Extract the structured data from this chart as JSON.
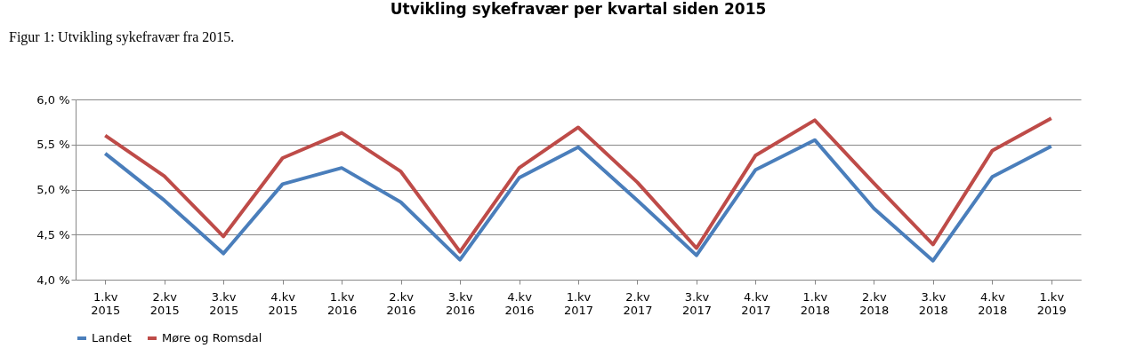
{
  "chart_data": {
    "type": "line",
    "title": "Utvikling sykefravær per kvartal siden 2015",
    "annotations": [
      "Figur 1: Utvikling sykefravær fra 2015."
    ],
    "categories": [
      "1.kv 2015",
      "2.kv 2015",
      "3.kv 2015",
      "4.kv 2015",
      "1.kv 2016",
      "2.kv 2016",
      "3.kv 2016",
      "4.kv 2016",
      "1.kv 2017",
      "2.kv 2017",
      "3.kv 2017",
      "4.kv 2017",
      "1.kv 2018",
      "2.kv 2018",
      "3.kv 2018",
      "4.kv 2018",
      "1.kv 2019"
    ],
    "series": [
      {
        "name": "Landet",
        "color": "#4a7ebb",
        "values": [
          5.4,
          4.88,
          4.29,
          5.06,
          5.24,
          4.86,
          4.22,
          5.13,
          5.47,
          4.88,
          4.27,
          5.22,
          5.55,
          4.79,
          4.21,
          5.14,
          5.48
        ]
      },
      {
        "name": "Møre og Romsdal",
        "color": "#be4b48",
        "values": [
          5.6,
          5.15,
          4.48,
          5.35,
          5.63,
          5.2,
          4.31,
          5.24,
          5.69,
          5.08,
          4.35,
          5.38,
          5.77,
          5.07,
          4.39,
          5.43,
          5.79
        ]
      }
    ],
    "ylim": [
      4.0,
      6.0
    ],
    "yticks": [
      {
        "value": 4.0,
        "label": "4,0 %"
      },
      {
        "value": 4.5,
        "label": "4,5 %"
      },
      {
        "value": 5.0,
        "label": "5,0 %"
      },
      {
        "value": 5.5,
        "label": "5,5 %"
      },
      {
        "value": 6.0,
        "label": "6,0 %"
      }
    ],
    "grid": "y",
    "legend": "bottom",
    "marker": "none",
    "line_style": "solid"
  }
}
